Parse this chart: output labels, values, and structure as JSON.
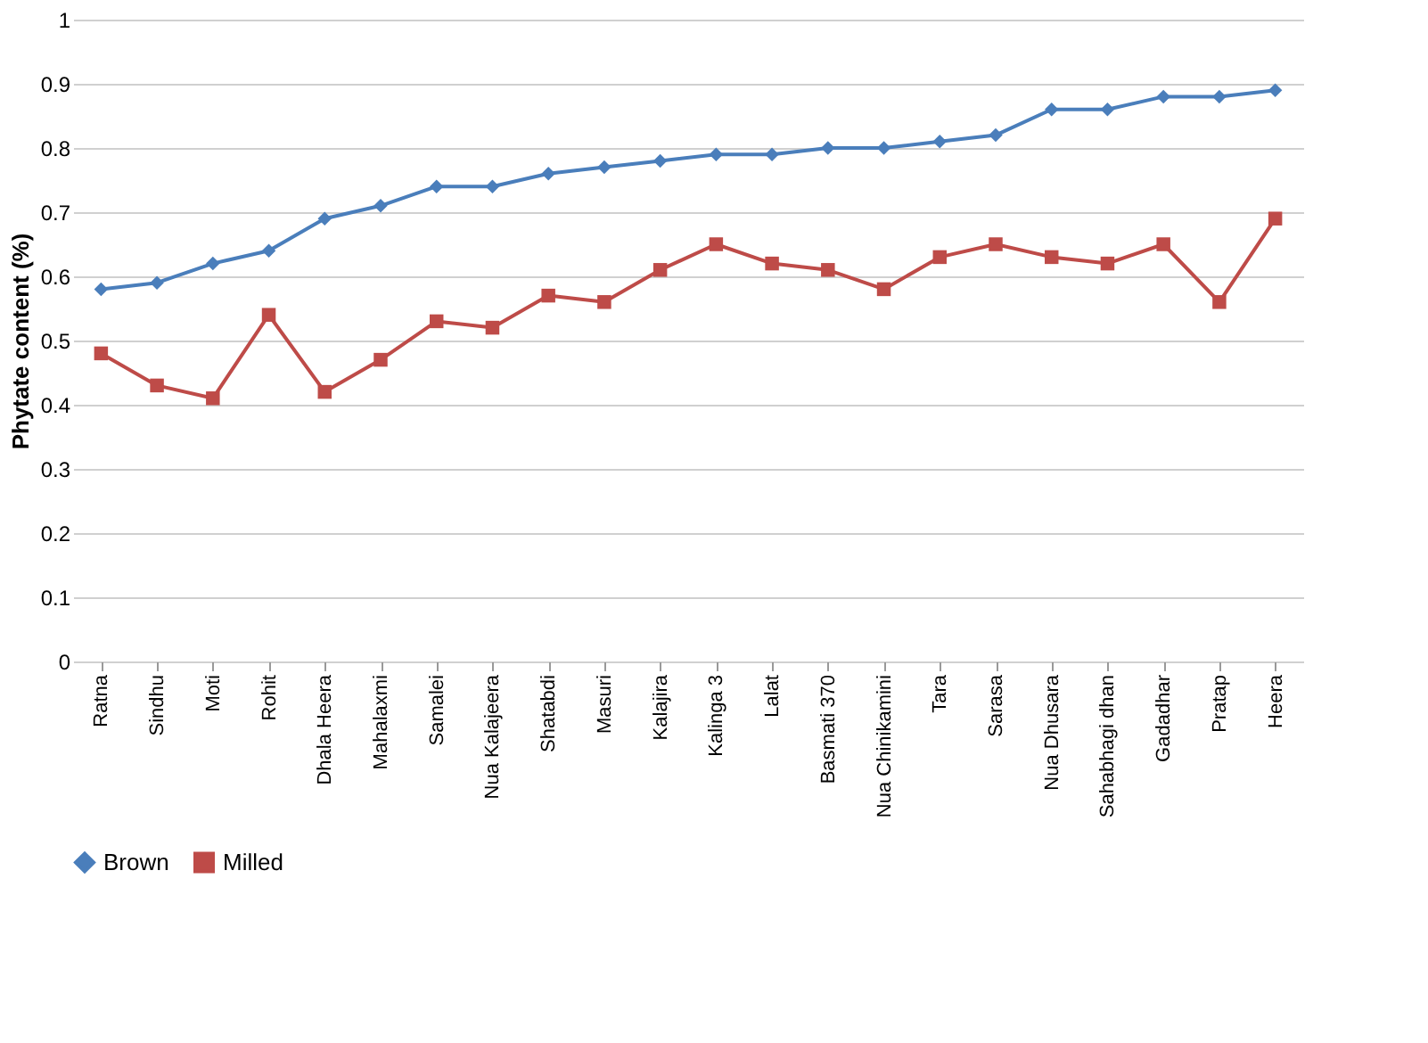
{
  "chart_data": {
    "type": "line",
    "ylabel": "Phytate content (%)",
    "categories": [
      "Ratna",
      "Sindhu",
      "Moti",
      "Rohit",
      "Dhala Heera",
      "Mahalaxmi",
      "Samalei",
      "Nua Kalajeera",
      "Shatabdi",
      "Masuri",
      "Kalajira",
      "Kalinga 3",
      "Lalat",
      "Basmati 370",
      "Nua Chinikamini",
      "Tara",
      "Sarasa",
      "Nua Dhusara",
      "Sahabhagi dhan",
      "Gadadhar",
      "Pratap",
      "Heera"
    ],
    "series": [
      {
        "name": "Brown",
        "color": "#4a7ebb",
        "marker": "diamond",
        "values": [
          0.58,
          0.59,
          0.62,
          0.64,
          0.69,
          0.71,
          0.74,
          0.74,
          0.76,
          0.77,
          0.78,
          0.79,
          0.79,
          0.8,
          0.8,
          0.81,
          0.82,
          0.86,
          0.86,
          0.88,
          0.88,
          0.89
        ]
      },
      {
        "name": "Milled",
        "color": "#be4b48",
        "marker": "square",
        "values": [
          0.48,
          0.43,
          0.41,
          0.54,
          0.42,
          0.47,
          0.53,
          0.52,
          0.57,
          0.56,
          0.61,
          0.65,
          0.62,
          0.61,
          0.58,
          0.63,
          0.65,
          0.63,
          0.62,
          0.65,
          0.56,
          0.69
        ]
      }
    ],
    "ylim": [
      0,
      1
    ],
    "yticks": [
      0,
      0.1,
      0.2,
      0.3,
      0.4,
      0.5,
      0.6,
      0.7,
      0.8,
      0.9,
      1
    ],
    "grid": "y",
    "legend": "bottom"
  }
}
